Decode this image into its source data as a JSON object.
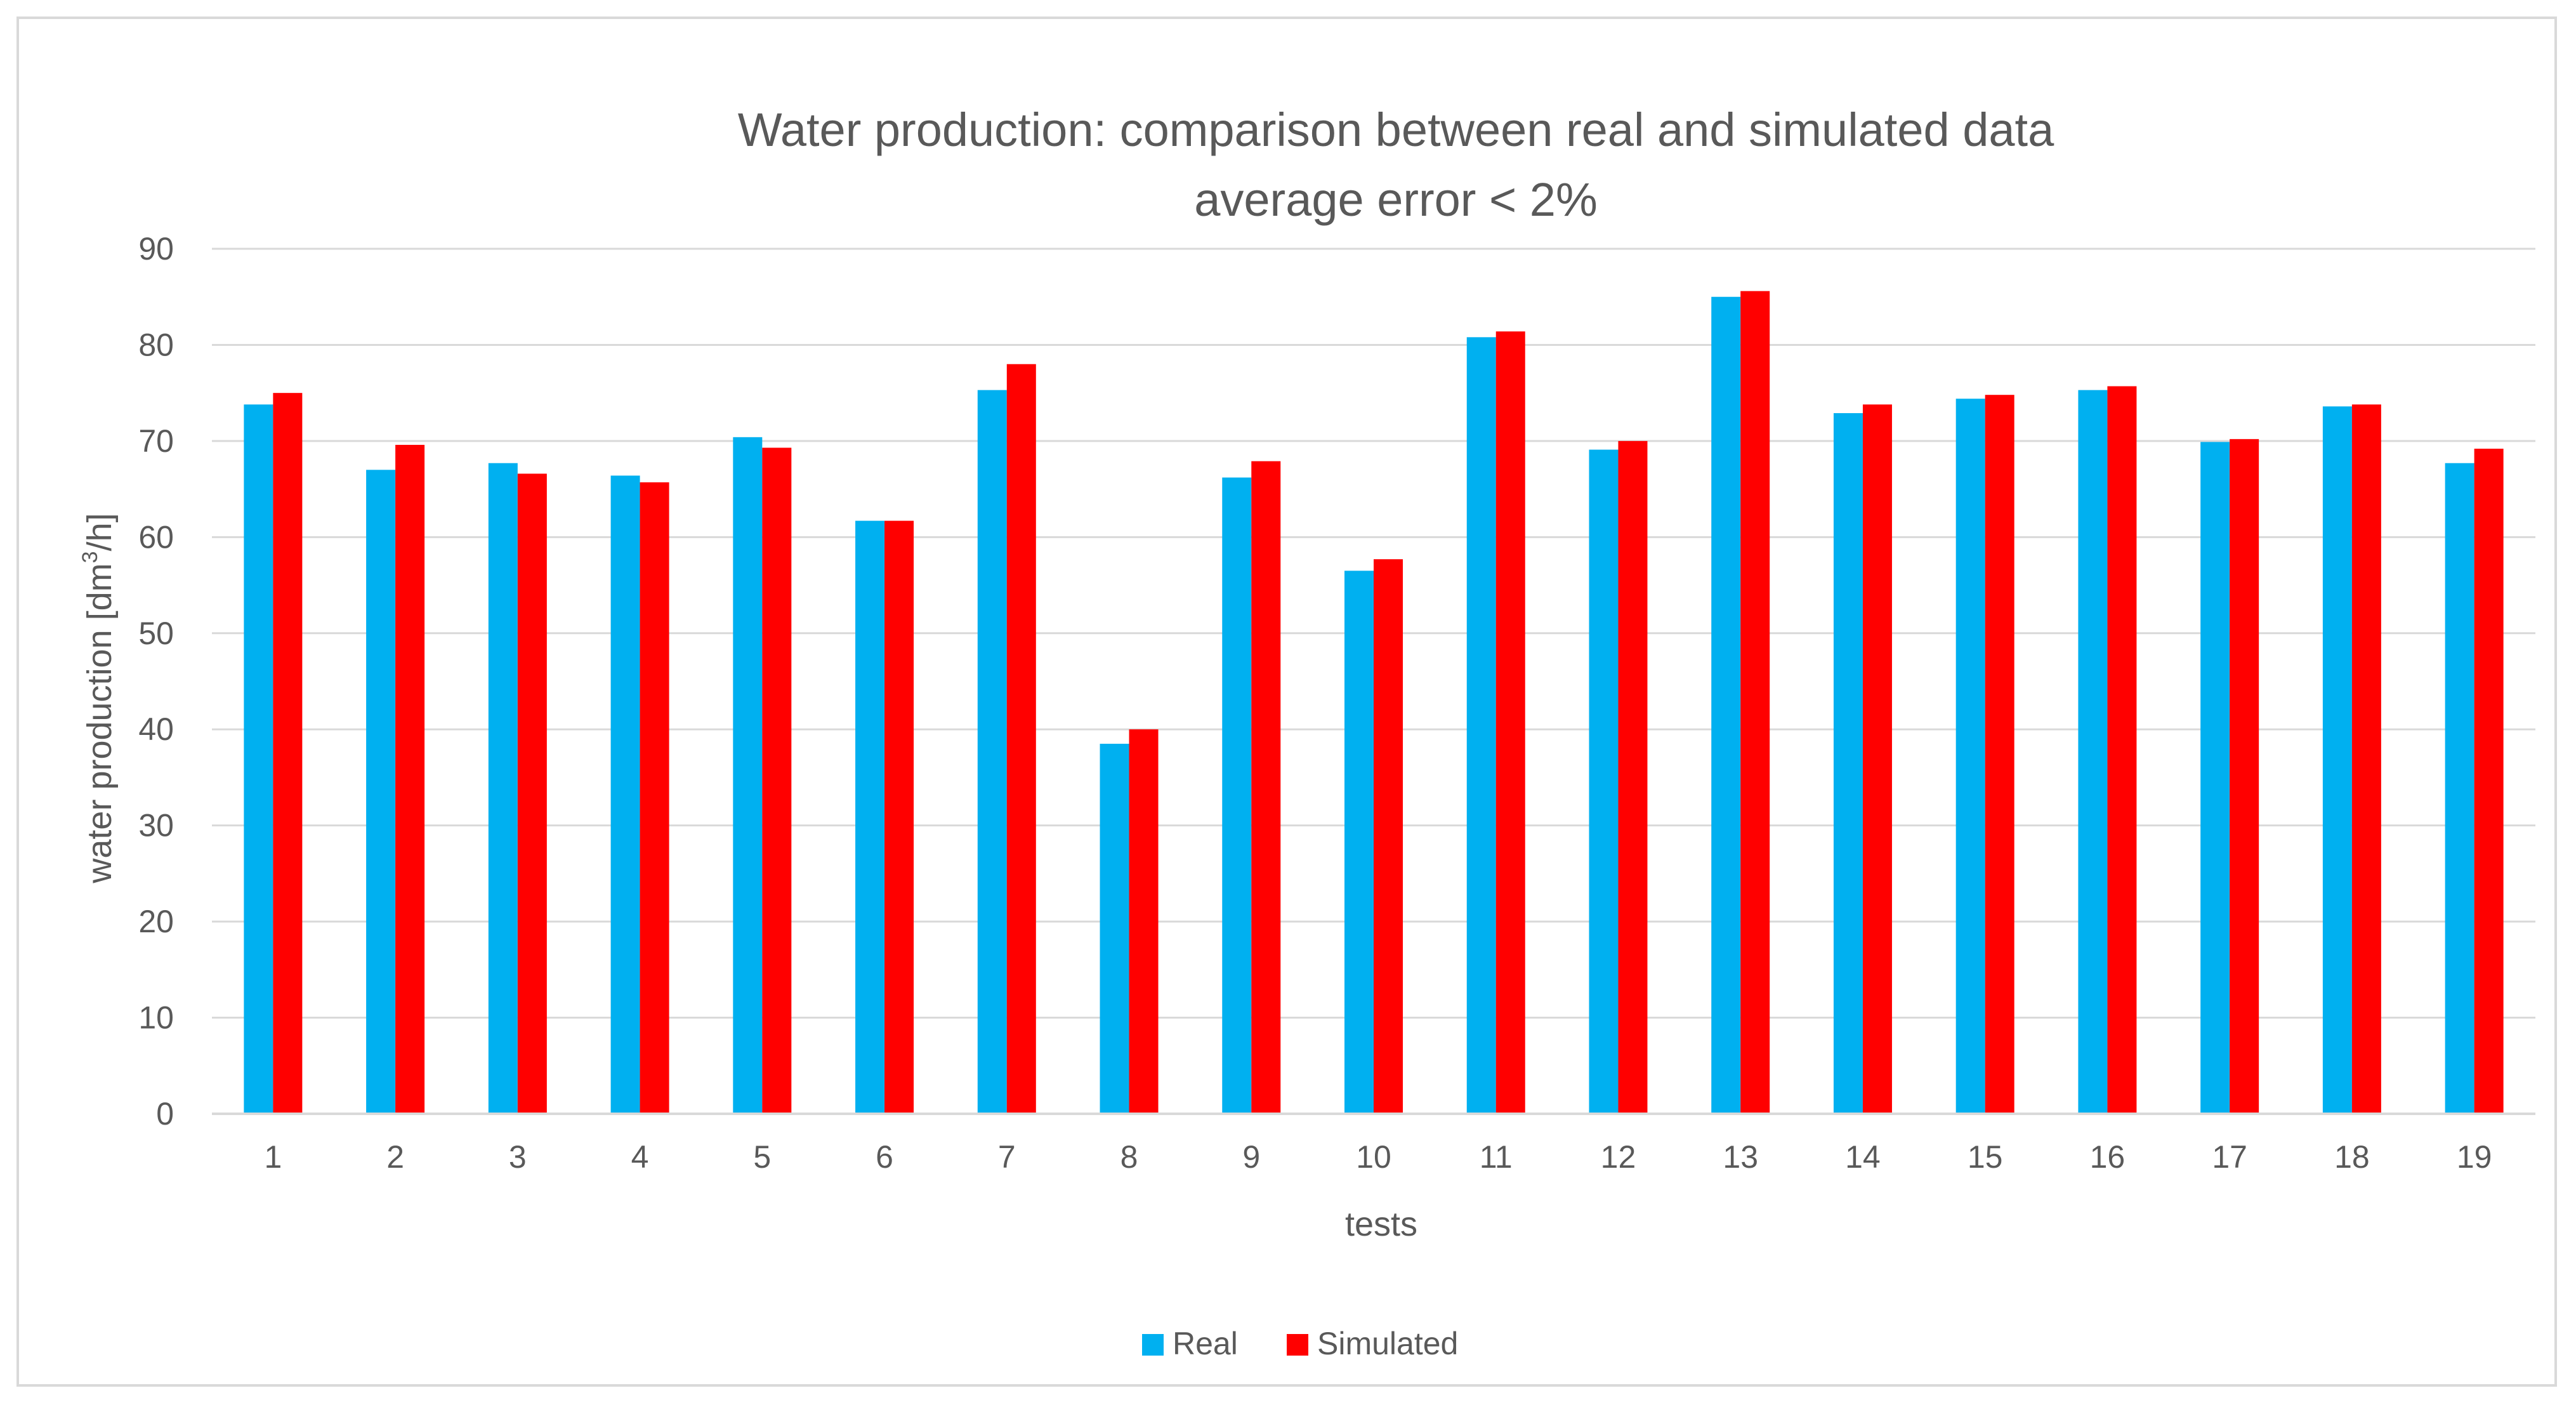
{
  "chart_data": {
    "type": "bar",
    "title": "Water production: comparison between real and simulated data",
    "subtitle": "average error < 2%",
    "xlabel": "tests",
    "ylabel": "water production [dm",
    "ylabel_superscript": "3",
    "ylabel_suffix": "/h]",
    "ylim": [
      0,
      90
    ],
    "yticks": [
      0,
      10,
      20,
      30,
      40,
      50,
      60,
      70,
      80,
      90
    ],
    "grid": true,
    "legend_position": "bottom",
    "categories": [
      "1",
      "2",
      "3",
      "4",
      "5",
      "6",
      "7",
      "8",
      "9",
      "10",
      "11",
      "12",
      "13",
      "14",
      "15",
      "16",
      "17",
      "18",
      "19"
    ],
    "series": [
      {
        "name": "Real",
        "color": "#00b0f0",
        "values": [
          73.8,
          67.0,
          67.7,
          66.4,
          70.4,
          61.7,
          75.3,
          38.5,
          66.2,
          56.5,
          80.8,
          69.1,
          85.0,
          72.9,
          74.4,
          75.3,
          69.9,
          73.6,
          67.7
        ]
      },
      {
        "name": "Simulated",
        "color": "#ff0000",
        "values": [
          75.0,
          69.6,
          66.6,
          65.7,
          69.3,
          61.7,
          78.0,
          40.0,
          67.9,
          57.7,
          81.4,
          70.0,
          85.6,
          73.8,
          74.8,
          75.7,
          70.2,
          73.8,
          69.2
        ]
      }
    ],
    "gridline_color": "#d9d9d9",
    "axis_color": "#d9d9d9"
  }
}
